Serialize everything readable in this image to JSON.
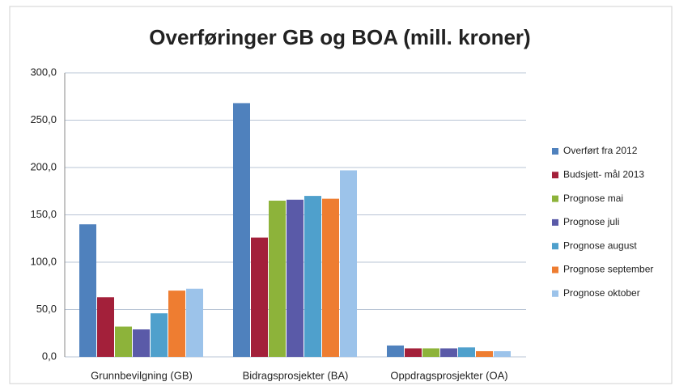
{
  "chart_data": {
    "type": "bar",
    "title": "Overføringer GB og BOA (mill. kroner)",
    "categories": [
      "Grunnbevilgning (GB)",
      "Bidragsprosjekter (BA)",
      "Oppdragsprosjekter (OA)"
    ],
    "series": [
      {
        "name": "Overført  fra 2012",
        "color": "#4f81bd",
        "values": [
          140,
          268,
          12
        ]
      },
      {
        "name": "Budsjett- mål 2013",
        "color": "#a3203a",
        "values": [
          63,
          126,
          9
        ]
      },
      {
        "name": "Prognose mai",
        "color": "#8db33a",
        "values": [
          32,
          165,
          9
        ]
      },
      {
        "name": "Prognose juli",
        "color": "#5a5aa8",
        "values": [
          29,
          166,
          9
        ]
      },
      {
        "name": "Prognose august",
        "color": "#4fa0cc",
        "values": [
          46,
          170,
          10
        ]
      },
      {
        "name": "Prognose september",
        "color": "#ee7d31",
        "values": [
          70,
          167,
          6
        ]
      },
      {
        "name": "Prognose oktober",
        "color": "#9cc3ea",
        "values": [
          72,
          197,
          6
        ]
      }
    ],
    "ylim": [
      0,
      300
    ],
    "yticks": [
      {
        "value": 0,
        "label": "0,0"
      },
      {
        "value": 50,
        "label": "50,0"
      },
      {
        "value": 100,
        "label": "100,0"
      },
      {
        "value": 150,
        "label": "150,0"
      },
      {
        "value": 200,
        "label": "200,0"
      },
      {
        "value": 250,
        "label": "250,0"
      },
      {
        "value": 300,
        "label": "300,0"
      }
    ],
    "grid": true,
    "legend": "right"
  }
}
